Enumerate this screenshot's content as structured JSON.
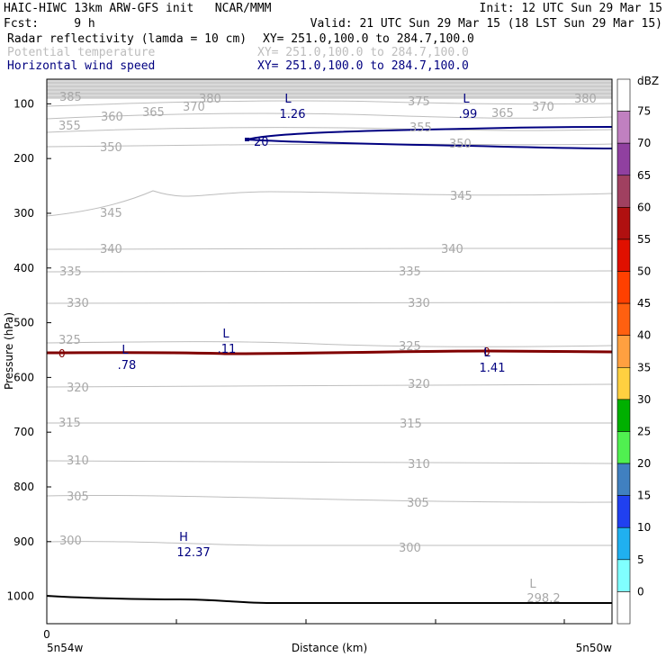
{
  "header": {
    "line1_left": "HAIC-HIWC 13km ARW-GFS init   NCAR/MMM",
    "line1_right": "Init: 12 UTC Sun 29 Mar 15",
    "line2_left": "Fcst:     9 h",
    "line2_right": "Valid: 21 UTC Sun 29 Mar 15 (18 LST Sun 29 Mar 15)",
    "fields": [
      {
        "name": "Radar reflectivity (lamda = 10 cm)",
        "xy": "XY= 251.0,100.0 to 284.7,100.0",
        "color": "#000000"
      },
      {
        "name": "Potential temperature",
        "xy": "XY= 251.0,100.0 to 284.7,100.0",
        "color": "#bdbdbd"
      },
      {
        "name": "Horizontal wind speed",
        "xy": "XY= 251.0,100.0 to 284.7,100.0",
        "color": "#000080"
      }
    ]
  },
  "chart_data": {
    "type": "cross-section",
    "ylabel": "Pressure (hPa)",
    "xlabel": "Distance (km)",
    "x_start_label": "5n54w",
    "x_end_label": "5n50w",
    "x_zero_label": "0",
    "y_ticks": [
      100,
      200,
      300,
      400,
      500,
      600,
      700,
      800,
      900,
      1000
    ],
    "ylim": [
      1050,
      55
    ],
    "theta_contours": [
      {
        "value": 385,
        "labels": [
          385,
          380,
          375,
          380
        ]
      },
      {
        "value": 360,
        "labels": [
          360,
          365,
          370,
          365,
          370
        ]
      },
      {
        "value": 355,
        "labels": [
          355,
          355
        ]
      },
      {
        "value": 350,
        "labels": [
          350,
          350
        ]
      },
      {
        "value": 345,
        "labels": [
          345,
          345
        ]
      },
      {
        "value": 340,
        "labels": [
          340,
          340
        ]
      },
      {
        "value": 335,
        "labels": [
          335,
          335
        ]
      },
      {
        "value": 330,
        "labels": [
          330,
          330
        ]
      },
      {
        "value": 325,
        "labels": [
          325,
          325
        ]
      },
      {
        "value": 320,
        "labels": [
          320,
          320
        ]
      },
      {
        "value": 315,
        "labels": [
          315,
          315
        ]
      },
      {
        "value": 310,
        "labels": [
          310,
          310
        ]
      },
      {
        "value": 305,
        "labels": [
          305,
          305
        ]
      },
      {
        "value": 300,
        "labels": [
          300,
          300
        ]
      }
    ],
    "wind_contours": [
      {
        "value": 20,
        "label": "20"
      }
    ],
    "reflectivity_contours": [
      {
        "value": 0,
        "label": "0"
      }
    ],
    "extrema": [
      {
        "type": "L",
        "value": "1.26",
        "field": "wind"
      },
      {
        "type": "L",
        "value": ".99",
        "field": "wind"
      },
      {
        "type": "L",
        "value": ".78",
        "field": "wind"
      },
      {
        "type": "L",
        "value": ".11",
        "field": "wind"
      },
      {
        "type": "L",
        "value": "1.41",
        "field": "wind"
      },
      {
        "type": "H",
        "value": "12.37",
        "field": "wind"
      },
      {
        "type": "L",
        "value": "298.2",
        "field": "theta"
      }
    ],
    "colorbar": {
      "unit": "dBZ",
      "levels": [
        75,
        70,
        65,
        60,
        55,
        50,
        45,
        40,
        35,
        30,
        25,
        20,
        15,
        10,
        5,
        0
      ],
      "colors": [
        "#ffffff",
        "#c080c0",
        "#9040a0",
        "#a04060",
        "#b01010",
        "#e01000",
        "#ff4000",
        "#ff6010",
        "#ffa040",
        "#ffd040",
        "#00b000",
        "#50f050",
        "#4080c0",
        "#2040f0",
        "#20b0f0",
        "#80ffff",
        "#ffffff"
      ]
    }
  }
}
